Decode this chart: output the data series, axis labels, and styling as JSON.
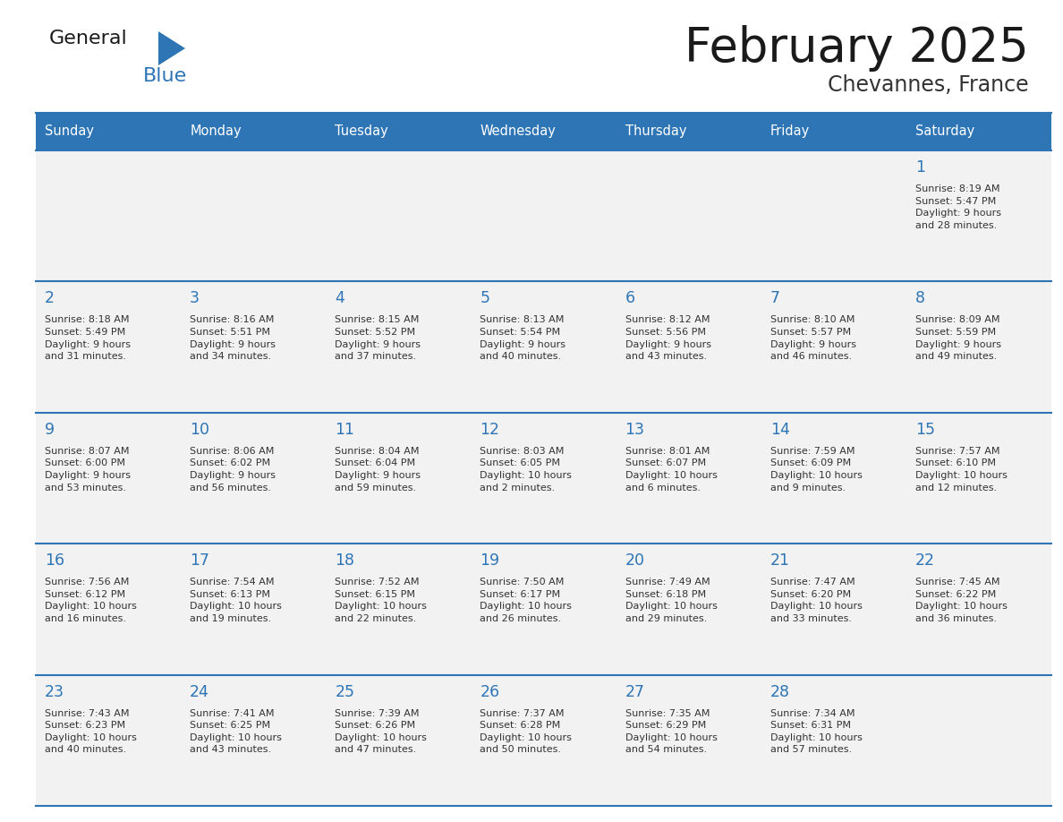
{
  "title": "February 2025",
  "subtitle": "Chevannes, France",
  "header_bg": "#2E75B6",
  "header_text": "#FFFFFF",
  "cell_bg": "#F2F2F2",
  "border_color": "#2E75B6",
  "day_headers": [
    "Sunday",
    "Monday",
    "Tuesday",
    "Wednesday",
    "Thursday",
    "Friday",
    "Saturday"
  ],
  "title_color": "#1a1a1a",
  "subtitle_color": "#333333",
  "day_num_color": "#2E75B6",
  "info_color": "#333333",
  "logo_general_color": "#1a1a1a",
  "logo_blue_color": "#2E75B6",
  "logo_triangle_color": "#2E75B6",
  "calendar_data": [
    [
      null,
      null,
      null,
      null,
      null,
      null,
      {
        "day": "1",
        "sunrise": "8:19 AM",
        "sunset": "5:47 PM",
        "daylight": "9 hours\nand 28 minutes."
      }
    ],
    [
      {
        "day": "2",
        "sunrise": "8:18 AM",
        "sunset": "5:49 PM",
        "daylight": "9 hours\nand 31 minutes."
      },
      {
        "day": "3",
        "sunrise": "8:16 AM",
        "sunset": "5:51 PM",
        "daylight": "9 hours\nand 34 minutes."
      },
      {
        "day": "4",
        "sunrise": "8:15 AM",
        "sunset": "5:52 PM",
        "daylight": "9 hours\nand 37 minutes."
      },
      {
        "day": "5",
        "sunrise": "8:13 AM",
        "sunset": "5:54 PM",
        "daylight": "9 hours\nand 40 minutes."
      },
      {
        "day": "6",
        "sunrise": "8:12 AM",
        "sunset": "5:56 PM",
        "daylight": "9 hours\nand 43 minutes."
      },
      {
        "day": "7",
        "sunrise": "8:10 AM",
        "sunset": "5:57 PM",
        "daylight": "9 hours\nand 46 minutes."
      },
      {
        "day": "8",
        "sunrise": "8:09 AM",
        "sunset": "5:59 PM",
        "daylight": "9 hours\nand 49 minutes."
      }
    ],
    [
      {
        "day": "9",
        "sunrise": "8:07 AM",
        "sunset": "6:00 PM",
        "daylight": "9 hours\nand 53 minutes."
      },
      {
        "day": "10",
        "sunrise": "8:06 AM",
        "sunset": "6:02 PM",
        "daylight": "9 hours\nand 56 minutes."
      },
      {
        "day": "11",
        "sunrise": "8:04 AM",
        "sunset": "6:04 PM",
        "daylight": "9 hours\nand 59 minutes."
      },
      {
        "day": "12",
        "sunrise": "8:03 AM",
        "sunset": "6:05 PM",
        "daylight": "10 hours\nand 2 minutes."
      },
      {
        "day": "13",
        "sunrise": "8:01 AM",
        "sunset": "6:07 PM",
        "daylight": "10 hours\nand 6 minutes."
      },
      {
        "day": "14",
        "sunrise": "7:59 AM",
        "sunset": "6:09 PM",
        "daylight": "10 hours\nand 9 minutes."
      },
      {
        "day": "15",
        "sunrise": "7:57 AM",
        "sunset": "6:10 PM",
        "daylight": "10 hours\nand 12 minutes."
      }
    ],
    [
      {
        "day": "16",
        "sunrise": "7:56 AM",
        "sunset": "6:12 PM",
        "daylight": "10 hours\nand 16 minutes."
      },
      {
        "day": "17",
        "sunrise": "7:54 AM",
        "sunset": "6:13 PM",
        "daylight": "10 hours\nand 19 minutes."
      },
      {
        "day": "18",
        "sunrise": "7:52 AM",
        "sunset": "6:15 PM",
        "daylight": "10 hours\nand 22 minutes."
      },
      {
        "day": "19",
        "sunrise": "7:50 AM",
        "sunset": "6:17 PM",
        "daylight": "10 hours\nand 26 minutes."
      },
      {
        "day": "20",
        "sunrise": "7:49 AM",
        "sunset": "6:18 PM",
        "daylight": "10 hours\nand 29 minutes."
      },
      {
        "day": "21",
        "sunrise": "7:47 AM",
        "sunset": "6:20 PM",
        "daylight": "10 hours\nand 33 minutes."
      },
      {
        "day": "22",
        "sunrise": "7:45 AM",
        "sunset": "6:22 PM",
        "daylight": "10 hours\nand 36 minutes."
      }
    ],
    [
      {
        "day": "23",
        "sunrise": "7:43 AM",
        "sunset": "6:23 PM",
        "daylight": "10 hours\nand 40 minutes."
      },
      {
        "day": "24",
        "sunrise": "7:41 AM",
        "sunset": "6:25 PM",
        "daylight": "10 hours\nand 43 minutes."
      },
      {
        "day": "25",
        "sunrise": "7:39 AM",
        "sunset": "6:26 PM",
        "daylight": "10 hours\nand 47 minutes."
      },
      {
        "day": "26",
        "sunrise": "7:37 AM",
        "sunset": "6:28 PM",
        "daylight": "10 hours\nand 50 minutes."
      },
      {
        "day": "27",
        "sunrise": "7:35 AM",
        "sunset": "6:29 PM",
        "daylight": "10 hours\nand 54 minutes."
      },
      {
        "day": "28",
        "sunrise": "7:34 AM",
        "sunset": "6:31 PM",
        "daylight": "10 hours\nand 57 minutes."
      },
      null
    ]
  ]
}
